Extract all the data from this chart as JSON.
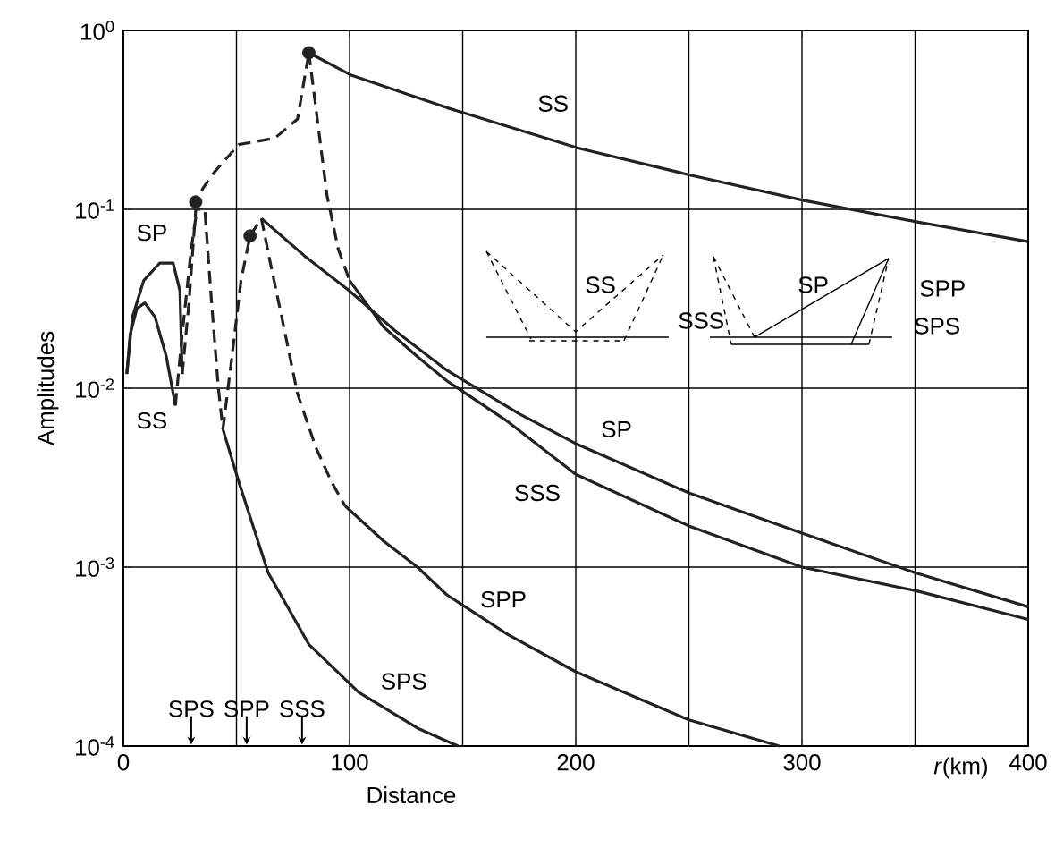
{
  "chart_data": {
    "type": "line",
    "xlabel": "Distance",
    "ylabel": "Amplitudes",
    "log": "y",
    "grid": true,
    "xlim": [
      0,
      400
    ],
    "ylim": [
      0.0001,
      1
    ],
    "xticks": [
      0,
      {
        "value": 50,
        "label": null
      },
      100,
      {
        "value": 150,
        "label": null
      },
      200,
      {
        "value": 250,
        "label": null
      },
      300,
      {
        "value": 350,
        "label": null
      },
      400
    ],
    "yticks": [
      {
        "value": 0.0001,
        "label": "10$^{-4}$"
      },
      {
        "value": 0.001,
        "label": "10$^{-3}$"
      },
      {
        "value": 0.01,
        "label": "10$^{-2}$"
      },
      {
        "value": 0.1,
        "label": "10$^{-1}$"
      },
      {
        "value": 1,
        "label": "10$^{0}$"
      }
    ],
    "series": [
      {
        "color": "#222222",
        "line_style": "solid",
        "x": [
          1.5,
          3,
          6,
          9.5,
          14,
          19,
          23
        ],
        "values": [
          0.012,
          0.02,
          0.028,
          0.03,
          0.025,
          0.015,
          0.008
        ]
      },
      {
        "color": "#222222",
        "line_style": "solid",
        "x": [
          1.5,
          4,
          9,
          16,
          22,
          25,
          26
        ],
        "values": [
          0.012,
          0.025,
          0.04,
          0.05,
          0.05,
          0.035,
          0.012
        ]
      },
      {
        "color": "#222222",
        "line_style": "dashed",
        "x": [
          23,
          26,
          30,
          33,
          35,
          40,
          51,
          67,
          77,
          82
        ],
        "values": [
          0.008,
          0.02,
          0.06,
          0.11,
          0.13,
          0.16,
          0.23,
          0.25,
          0.32,
          0.75
        ]
      },
      {
        "color": "#222222",
        "line_style": "dashed",
        "x": [
          26,
          29,
          32,
          36,
          39,
          42,
          44
        ],
        "values": [
          0.012,
          0.03,
          0.1,
          0.1,
          0.03,
          0.01,
          0.0059
        ]
      },
      {
        "color": "#222222",
        "line_style": "solid",
        "x": [
          44,
          51,
          64,
          82,
          104,
          130,
          148
        ],
        "values": [
          0.0059,
          0.003,
          0.00093,
          0.00037,
          0.0002,
          0.000126,
          0.0001
        ]
      },
      {
        "color": "#222222",
        "line_style": "solid",
        "x": [
          82,
          101,
          143,
          201,
          251,
          301,
          351,
          400
        ],
        "values": [
          0.75,
          0.56,
          0.37,
          0.22,
          0.155,
          0.112,
          0.085,
          0.066
        ]
      },
      {
        "color": "#222222",
        "line_style": "dashed",
        "x": [
          82,
          86,
          90,
          95,
          100
        ],
        "values": [
          0.75,
          0.3,
          0.12,
          0.06,
          0.04
        ]
      },
      {
        "color": "#222222",
        "line_style": "solid",
        "x": [
          100,
          115,
          130,
          143,
          170,
          200,
          250,
          300,
          350,
          400
        ],
        "values": [
          0.04,
          0.022,
          0.015,
          0.011,
          0.0065,
          0.0033,
          0.0017,
          0.001,
          0.00074,
          0.00051
        ]
      },
      {
        "color": "#222222",
        "line_style": "dashed",
        "x": [
          44,
          48,
          52,
          56,
          61
        ],
        "values": [
          0.0059,
          0.015,
          0.04,
          0.071,
          0.089
        ]
      },
      {
        "color": "#222222",
        "line_style": "solid",
        "x": [
          61,
          80,
          100,
          120,
          143,
          175,
          200,
          250,
          300,
          350,
          400
        ],
        "values": [
          0.089,
          0.055,
          0.035,
          0.021,
          0.0126,
          0.0072,
          0.0049,
          0.0026,
          0.00155,
          0.00093,
          0.0006
        ]
      },
      {
        "color": "#222222",
        "line_style": "dashed",
        "x": [
          61,
          65,
          70,
          77,
          85,
          92,
          98
        ],
        "values": [
          0.089,
          0.05,
          0.025,
          0.0093,
          0.0047,
          0.003,
          0.0022
        ]
      },
      {
        "color": "#222222",
        "line_style": "solid",
        "x": [
          98,
          115,
          130,
          143,
          170,
          200,
          250,
          290
        ],
        "values": [
          0.0022,
          0.0014,
          0.001,
          0.0007,
          0.00042,
          0.00026,
          0.00014,
          0.0001
        ]
      },
      {
        "type": "scatter",
        "marker": "circle",
        "color": "#222222",
        "x": [
          32,
          56,
          82
        ],
        "values": [
          0.11,
          0.071,
          0.75
        ]
      }
    ],
    "annotations": [
      "SS",
      "SP",
      "SS",
      "SP",
      "SSS",
      "SPP",
      "SPS",
      "SPS",
      "SPP",
      "SSS",
      "SS",
      "SSS",
      "SP",
      "SPP",
      "SPS",
      "*r*(km)"
    ]
  }
}
